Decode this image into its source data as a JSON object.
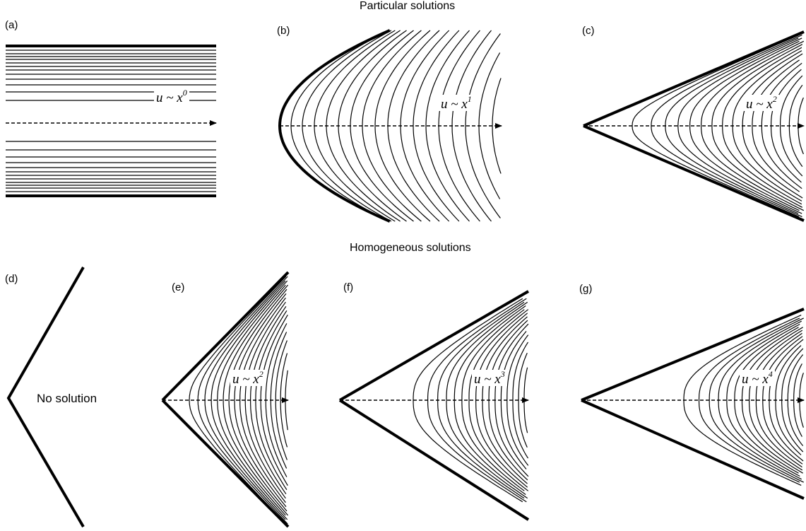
{
  "header_top": "Particular solutions",
  "header_bottom": "Homogeneous solutions",
  "panels": [
    {
      "id": "a",
      "label": "(a)",
      "shape": "channel",
      "u": "u",
      "op": "~",
      "x": "x",
      "exponent": "0"
    },
    {
      "id": "b",
      "label": "(b)",
      "shape": "parabola",
      "u": "u",
      "op": "~",
      "x": "x",
      "exponent": "1"
    },
    {
      "id": "c",
      "label": "(c)",
      "shape": "wedge",
      "u": "u",
      "op": "~",
      "x": "x",
      "exponent": "2"
    },
    {
      "id": "d",
      "label": "(d)",
      "shape": "corner",
      "text": "No solution"
    },
    {
      "id": "e",
      "label": "(e)",
      "shape": "wedge",
      "u": "u",
      "op": "~",
      "x": "x",
      "exponent": "2"
    },
    {
      "id": "f",
      "label": "(f)",
      "shape": "wedge",
      "u": "u",
      "op": "~",
      "x": "x",
      "exponent": "3"
    },
    {
      "id": "g",
      "label": "(g)",
      "shape": "wedge",
      "u": "u",
      "op": "~",
      "x": "x",
      "exponent": "4"
    }
  ],
  "colors": {
    "line": "#000000",
    "background": "#ffffff"
  }
}
